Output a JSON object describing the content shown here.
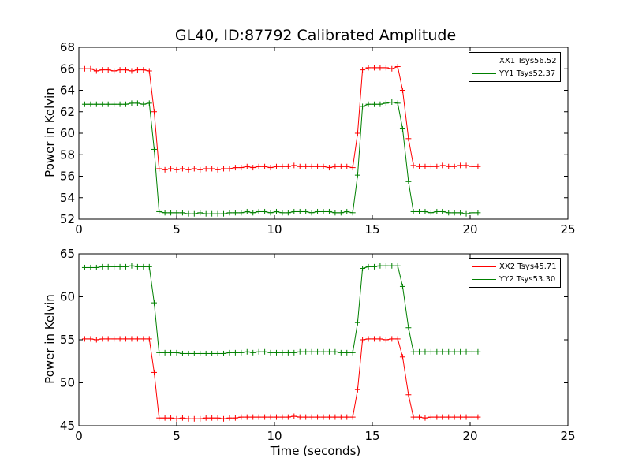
{
  "figure": {
    "title": "GL40, ID:87792 Calibrated Amplitude",
    "xlabel": "Time (seconds)"
  },
  "colors": {
    "red": "#ff0000",
    "green": "#008000"
  },
  "chart_data": [
    {
      "type": "line",
      "title": "GL40, ID:87792 Calibrated Amplitude",
      "xlabel": "",
      "ylabel": "Power in Kelvin",
      "xlim": [
        0,
        25
      ],
      "ylim": [
        52,
        68
      ],
      "xticks": [
        0,
        5,
        10,
        15,
        20,
        25
      ],
      "yticks": [
        52,
        54,
        56,
        58,
        60,
        62,
        64,
        66,
        68
      ],
      "legend_position": "top-right",
      "grid": false,
      "x": [
        0.3,
        0.6,
        0.9,
        1.2,
        1.5,
        1.8,
        2.1,
        2.4,
        2.7,
        3.0,
        3.3,
        3.6,
        3.85,
        4.1,
        4.4,
        4.7,
        5.0,
        5.3,
        5.6,
        5.9,
        6.2,
        6.5,
        6.8,
        7.1,
        7.4,
        7.7,
        8.0,
        8.3,
        8.6,
        8.9,
        9.2,
        9.5,
        9.8,
        10.1,
        10.4,
        10.7,
        11.0,
        11.3,
        11.6,
        11.9,
        12.2,
        12.5,
        12.8,
        13.1,
        13.4,
        13.7,
        14.0,
        14.25,
        14.5,
        14.8,
        15.1,
        15.4,
        15.7,
        16.0,
        16.3,
        16.55,
        16.85,
        17.1,
        17.4,
        17.7,
        18.0,
        18.3,
        18.6,
        18.9,
        19.2,
        19.5,
        19.8,
        20.1,
        20.4
      ],
      "series": [
        {
          "name": "XX1 Tsys56.52",
          "color": "#ff0000",
          "values": [
            66.0,
            66.0,
            65.8,
            65.9,
            65.9,
            65.8,
            65.9,
            65.9,
            65.8,
            65.9,
            65.9,
            65.8,
            62.0,
            56.7,
            56.6,
            56.7,
            56.6,
            56.7,
            56.6,
            56.7,
            56.6,
            56.7,
            56.7,
            56.6,
            56.7,
            56.7,
            56.8,
            56.8,
            56.9,
            56.8,
            56.9,
            56.9,
            56.8,
            56.9,
            56.9,
            56.9,
            57.0,
            56.9,
            56.9,
            56.9,
            56.9,
            56.9,
            56.8,
            56.9,
            56.9,
            56.9,
            56.8,
            60.0,
            65.9,
            66.1,
            66.1,
            66.1,
            66.1,
            66.0,
            66.2,
            64.0,
            59.5,
            57.0,
            56.9,
            56.9,
            56.9,
            56.9,
            57.0,
            56.9,
            56.9,
            57.0,
            57.0,
            56.9,
            56.9
          ]
        },
        {
          "name": "YY1 Tsys52.37",
          "color": "#008000",
          "values": [
            62.7,
            62.7,
            62.7,
            62.7,
            62.7,
            62.7,
            62.7,
            62.7,
            62.8,
            62.8,
            62.7,
            62.8,
            58.5,
            52.7,
            52.6,
            52.6,
            52.6,
            52.6,
            52.5,
            52.5,
            52.6,
            52.5,
            52.5,
            52.5,
            52.5,
            52.6,
            52.6,
            52.6,
            52.7,
            52.6,
            52.7,
            52.7,
            52.6,
            52.7,
            52.6,
            52.6,
            52.7,
            52.7,
            52.7,
            52.6,
            52.7,
            52.7,
            52.7,
            52.6,
            52.6,
            52.7,
            52.6,
            56.1,
            62.5,
            62.7,
            62.7,
            62.7,
            62.8,
            62.9,
            62.8,
            60.4,
            55.5,
            52.7,
            52.7,
            52.7,
            52.6,
            52.7,
            52.7,
            52.6,
            52.6,
            52.6,
            52.5,
            52.6,
            52.6
          ]
        }
      ]
    },
    {
      "type": "line",
      "title": "",
      "xlabel": "Time (seconds)",
      "ylabel": "Power in Kelvin",
      "xlim": [
        0,
        25
      ],
      "ylim": [
        45,
        65
      ],
      "xticks": [
        0,
        5,
        10,
        15,
        20,
        25
      ],
      "yticks": [
        45,
        50,
        55,
        60,
        65
      ],
      "legend_position": "top-right",
      "grid": false,
      "x": [
        0.3,
        0.6,
        0.9,
        1.2,
        1.5,
        1.8,
        2.1,
        2.4,
        2.7,
        3.0,
        3.3,
        3.6,
        3.85,
        4.1,
        4.4,
        4.7,
        5.0,
        5.3,
        5.6,
        5.9,
        6.2,
        6.5,
        6.8,
        7.1,
        7.4,
        7.7,
        8.0,
        8.3,
        8.6,
        8.9,
        9.2,
        9.5,
        9.8,
        10.1,
        10.4,
        10.7,
        11.0,
        11.3,
        11.6,
        11.9,
        12.2,
        12.5,
        12.8,
        13.1,
        13.4,
        13.7,
        14.0,
        14.25,
        14.5,
        14.8,
        15.1,
        15.4,
        15.7,
        16.0,
        16.3,
        16.55,
        16.85,
        17.1,
        17.4,
        17.7,
        18.0,
        18.3,
        18.6,
        18.9,
        19.2,
        19.5,
        19.8,
        20.1,
        20.4
      ],
      "series": [
        {
          "name": "XX2 Tsys45.71",
          "color": "#ff0000",
          "values": [
            55.1,
            55.1,
            55.0,
            55.1,
            55.1,
            55.1,
            55.1,
            55.1,
            55.1,
            55.1,
            55.1,
            55.1,
            51.2,
            45.9,
            45.9,
            45.9,
            45.8,
            45.9,
            45.8,
            45.8,
            45.8,
            45.9,
            45.9,
            45.9,
            45.8,
            45.9,
            45.9,
            46.0,
            46.0,
            46.0,
            46.0,
            46.0,
            46.0,
            46.0,
            46.0,
            46.0,
            46.1,
            46.0,
            46.0,
            46.0,
            46.0,
            46.0,
            46.0,
            46.0,
            46.0,
            46.0,
            46.0,
            49.2,
            55.0,
            55.1,
            55.1,
            55.1,
            55.0,
            55.1,
            55.1,
            53.0,
            48.6,
            46.0,
            46.0,
            45.9,
            46.0,
            46.0,
            46.0,
            46.0,
            46.0,
            46.0,
            46.0,
            46.0,
            46.0
          ]
        },
        {
          "name": "YY2 Tsys53.30",
          "color": "#008000",
          "values": [
            63.4,
            63.4,
            63.4,
            63.5,
            63.5,
            63.5,
            63.5,
            63.5,
            63.6,
            63.5,
            63.5,
            63.5,
            59.3,
            53.5,
            53.5,
            53.5,
            53.5,
            53.4,
            53.4,
            53.4,
            53.4,
            53.4,
            53.4,
            53.4,
            53.4,
            53.5,
            53.5,
            53.5,
            53.6,
            53.5,
            53.6,
            53.6,
            53.5,
            53.5,
            53.5,
            53.5,
            53.5,
            53.6,
            53.6,
            53.6,
            53.6,
            53.6,
            53.6,
            53.6,
            53.5,
            53.5,
            53.5,
            57.0,
            63.3,
            63.5,
            63.5,
            63.6,
            63.6,
            63.6,
            63.6,
            61.2,
            56.4,
            53.6,
            53.6,
            53.6,
            53.6,
            53.6,
            53.6,
            53.6,
            53.6,
            53.6,
            53.6,
            53.6,
            53.6
          ]
        }
      ]
    }
  ]
}
